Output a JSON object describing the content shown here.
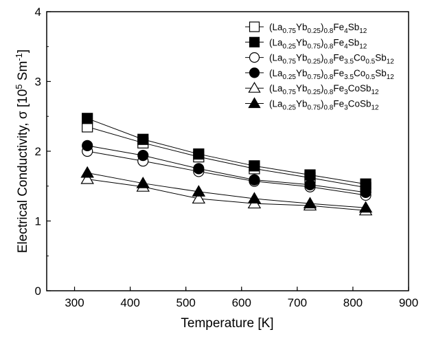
{
  "chart_data": {
    "type": "line",
    "xlabel": "Temperature [K]",
    "ylabel": {
      "prefix": "Electrical Conductivity, ",
      "symbol": "σ",
      "unit_open": " [10",
      "unit_exp1": "5",
      "unit_mid": " Sm",
      "unit_exp2": "-1",
      "unit_close": "]"
    },
    "xlim": [
      250,
      900
    ],
    "ylim": [
      0,
      4
    ],
    "xticks": [
      300,
      400,
      500,
      600,
      700,
      800,
      900
    ],
    "yticks": [
      0,
      1,
      2,
      3,
      4
    ],
    "grid": false,
    "legend_position": "top-right",
    "x": [
      323,
      423,
      523,
      623,
      723,
      823
    ],
    "series": [
      {
        "name": "(La0.75Yb0.25)0.8Fe4Sb12",
        "marker": "square",
        "filled": false,
        "label_parts": [
          [
            "(La",
            ""
          ],
          [
            "0.75",
            "s"
          ],
          [
            "Yb",
            ""
          ],
          [
            "0.25",
            "s"
          ],
          [
            ")",
            ""
          ],
          [
            "0.8",
            "s"
          ],
          [
            "Fe",
            ""
          ],
          [
            "4",
            "s"
          ],
          [
            "Sb",
            ""
          ],
          [
            "12",
            "s"
          ]
        ],
        "values": [
          2.35,
          2.12,
          1.92,
          1.75,
          1.62,
          1.48
        ]
      },
      {
        "name": "(La0.25Yb0.75)0.8Fe4Sb12",
        "marker": "square",
        "filled": true,
        "label_parts": [
          [
            "(La",
            ""
          ],
          [
            "0.25",
            "s"
          ],
          [
            "Yb",
            ""
          ],
          [
            "0.75",
            "s"
          ],
          [
            ")",
            ""
          ],
          [
            "0.8",
            "s"
          ],
          [
            "Fe",
            ""
          ],
          [
            "4",
            "s"
          ],
          [
            "Sb",
            ""
          ],
          [
            "12",
            "s"
          ]
        ],
        "values": [
          2.47,
          2.17,
          1.96,
          1.79,
          1.66,
          1.53
        ]
      },
      {
        "name": "(La0.75Yb0.25)0.8Fe3.5Co0.5Sb12",
        "marker": "circle",
        "filled": false,
        "label_parts": [
          [
            "(La",
            ""
          ],
          [
            "0.75",
            "s"
          ],
          [
            "Yb",
            ""
          ],
          [
            "0.25",
            "s"
          ],
          [
            ")",
            ""
          ],
          [
            "0.8",
            "s"
          ],
          [
            "Fe",
            ""
          ],
          [
            "3.5",
            "s"
          ],
          [
            "Co",
            ""
          ],
          [
            "0.5",
            "s"
          ],
          [
            "Sb",
            ""
          ],
          [
            "12",
            "s"
          ]
        ],
        "values": [
          2.0,
          1.86,
          1.71,
          1.57,
          1.49,
          1.37
        ]
      },
      {
        "name": "(La0.25Yb0.75)0.8Fe3.5Co0.5Sb12",
        "marker": "circle",
        "filled": true,
        "label_parts": [
          [
            "(La",
            ""
          ],
          [
            "0.25",
            "s"
          ],
          [
            "Yb",
            ""
          ],
          [
            "0.75",
            "s"
          ],
          [
            ")",
            ""
          ],
          [
            "0.8",
            "s"
          ],
          [
            "Fe",
            ""
          ],
          [
            "3.5",
            "s"
          ],
          [
            "Co",
            ""
          ],
          [
            "0.5",
            "s"
          ],
          [
            "Sb",
            ""
          ],
          [
            "12",
            "s"
          ]
        ],
        "values": [
          2.08,
          1.94,
          1.75,
          1.59,
          1.52,
          1.41
        ]
      },
      {
        "name": "(La0.75Yb0.25)0.8Fe3CoSb12",
        "marker": "triangle",
        "filled": false,
        "label_parts": [
          [
            "(La",
            ""
          ],
          [
            "0.75",
            "s"
          ],
          [
            "Yb",
            ""
          ],
          [
            "0.25",
            "s"
          ],
          [
            ")",
            ""
          ],
          [
            "0.8",
            "s"
          ],
          [
            "Fe",
            ""
          ],
          [
            "3",
            "s"
          ],
          [
            "CoSb",
            ""
          ],
          [
            "12",
            "s"
          ]
        ],
        "values": [
          1.6,
          1.49,
          1.32,
          1.25,
          1.22,
          1.15
        ]
      },
      {
        "name": "(La0.25Yb0.75)0.8Fe3CoSb12",
        "marker": "triangle",
        "filled": true,
        "label_parts": [
          [
            "(La",
            ""
          ],
          [
            "0.25",
            "s"
          ],
          [
            "Yb",
            ""
          ],
          [
            "0.75",
            "s"
          ],
          [
            ")",
            ""
          ],
          [
            "0.8",
            "s"
          ],
          [
            "Fe",
            ""
          ],
          [
            "3",
            "s"
          ],
          [
            "CoSb",
            ""
          ],
          [
            "12",
            "s"
          ]
        ],
        "values": [
          1.69,
          1.54,
          1.42,
          1.32,
          1.25,
          1.19
        ]
      }
    ]
  }
}
